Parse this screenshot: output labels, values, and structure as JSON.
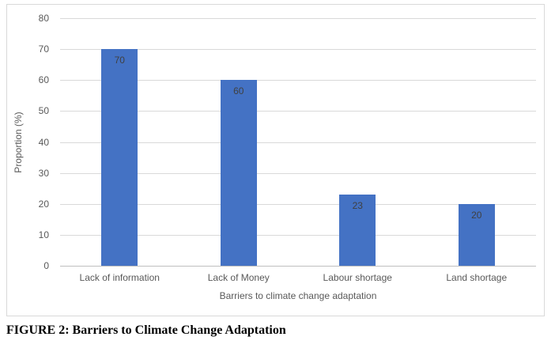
{
  "figure": {
    "caption": "FIGURE 2: Barriers to Climate Change Adaptation"
  },
  "chart_data": {
    "type": "bar",
    "title": "",
    "categories": [
      "Lack of information",
      "Lack of Money",
      "Labour shortage",
      "Land shortage"
    ],
    "values": [
      70,
      60,
      23,
      20
    ],
    "data_labels": [
      "70",
      "60",
      "23",
      "20"
    ],
    "xlabel": "Barriers to climate change adaptation",
    "ylabel": "Proportion (%)",
    "ylim": [
      0,
      80
    ],
    "ytick_step": 10,
    "ytick_labels": [
      "0",
      "10",
      "20",
      "30",
      "40",
      "50",
      "60",
      "70",
      "80"
    ],
    "grid": true,
    "legend": "none",
    "colors": {
      "bar": "#4472C4",
      "gridline": "#D9D9D9",
      "axis_line": "#BFBFBF",
      "tick_text": "#595959",
      "data_label_text": "#404040",
      "frame_border": "#D9D9D9",
      "caption_text": "#000000",
      "background": "#FFFFFF"
    }
  }
}
